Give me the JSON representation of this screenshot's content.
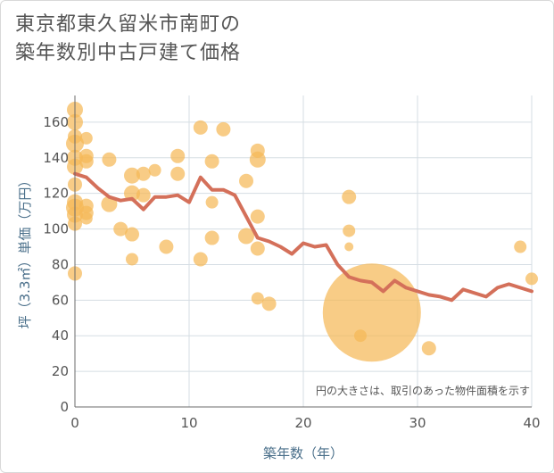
{
  "title": {
    "line1": "東京都東久留米市南町の",
    "line2": "築年数別中古戸建て価格"
  },
  "chart_data": {
    "type": "scatter",
    "title": "東京都東久留米市南町の築年数別中古戸建て価格",
    "xlabel": "築年数（年）",
    "ylabel": "坪（3.3㎡）単価（万円）",
    "xlim": [
      0,
      40
    ],
    "ylim": [
      0,
      175
    ],
    "xticks": [
      0,
      10,
      20,
      30,
      40
    ],
    "yticks": [
      0,
      20,
      40,
      60,
      80,
      100,
      120,
      140,
      160
    ],
    "grid": true,
    "annotation": "円の大きさは、取引のあった物件面積を示す",
    "colors": {
      "bubble": "#f5b957",
      "line": "#d4705a",
      "grid": "#d5dde3"
    },
    "bubbles": [
      {
        "x": 0,
        "y": 167,
        "s": 9
      },
      {
        "x": 0,
        "y": 160,
        "s": 9
      },
      {
        "x": 0,
        "y": 152,
        "s": 8
      },
      {
        "x": 0,
        "y": 148,
        "s": 10
      },
      {
        "x": 0,
        "y": 140,
        "s": 9
      },
      {
        "x": 0,
        "y": 135,
        "s": 9
      },
      {
        "x": 0,
        "y": 125,
        "s": 8
      },
      {
        "x": 0,
        "y": 115,
        "s": 9
      },
      {
        "x": 0,
        "y": 112,
        "s": 10
      },
      {
        "x": 0,
        "y": 108,
        "s": 9
      },
      {
        "x": 0,
        "y": 103,
        "s": 8
      },
      {
        "x": 0,
        "y": 75,
        "s": 8
      },
      {
        "x": 1,
        "y": 151,
        "s": 7
      },
      {
        "x": 1,
        "y": 141,
        "s": 8
      },
      {
        "x": 1,
        "y": 138,
        "s": 8
      },
      {
        "x": 1,
        "y": 113,
        "s": 8
      },
      {
        "x": 1,
        "y": 109,
        "s": 8
      },
      {
        "x": 1,
        "y": 106,
        "s": 7
      },
      {
        "x": 3,
        "y": 139,
        "s": 8
      },
      {
        "x": 3,
        "y": 114,
        "s": 9
      },
      {
        "x": 4,
        "y": 100,
        "s": 8
      },
      {
        "x": 5,
        "y": 130,
        "s": 9
      },
      {
        "x": 5,
        "y": 120,
        "s": 9
      },
      {
        "x": 5,
        "y": 97,
        "s": 8
      },
      {
        "x": 5,
        "y": 83,
        "s": 7
      },
      {
        "x": 6,
        "y": 131,
        "s": 8
      },
      {
        "x": 6,
        "y": 119,
        "s": 8
      },
      {
        "x": 7,
        "y": 133,
        "s": 7
      },
      {
        "x": 8,
        "y": 90,
        "s": 8
      },
      {
        "x": 9,
        "y": 141,
        "s": 8
      },
      {
        "x": 9,
        "y": 131,
        "s": 8
      },
      {
        "x": 11,
        "y": 157,
        "s": 8
      },
      {
        "x": 11,
        "y": 83,
        "s": 8
      },
      {
        "x": 12,
        "y": 138,
        "s": 8
      },
      {
        "x": 12,
        "y": 115,
        "s": 7
      },
      {
        "x": 12,
        "y": 95,
        "s": 8
      },
      {
        "x": 13,
        "y": 156,
        "s": 8
      },
      {
        "x": 15,
        "y": 127,
        "s": 8
      },
      {
        "x": 15,
        "y": 96,
        "s": 9
      },
      {
        "x": 16,
        "y": 144,
        "s": 8
      },
      {
        "x": 16,
        "y": 139,
        "s": 9
      },
      {
        "x": 16,
        "y": 107,
        "s": 8
      },
      {
        "x": 16,
        "y": 89,
        "s": 8
      },
      {
        "x": 16,
        "y": 61,
        "s": 7
      },
      {
        "x": 17,
        "y": 58,
        "s": 8
      },
      {
        "x": 24,
        "y": 118,
        "s": 8
      },
      {
        "x": 24,
        "y": 99,
        "s": 7
      },
      {
        "x": 24,
        "y": 90,
        "s": 5
      },
      {
        "x": 25,
        "y": 40,
        "s": 7
      },
      {
        "x": 26,
        "y": 53,
        "s": 55
      },
      {
        "x": 31,
        "y": 33,
        "s": 8
      },
      {
        "x": 39,
        "y": 90,
        "s": 7
      },
      {
        "x": 40,
        "y": 72,
        "s": 7
      }
    ],
    "line": {
      "x": [
        0,
        1,
        2,
        3,
        4,
        5,
        6,
        7,
        8,
        9,
        10,
        11,
        12,
        13,
        14,
        15,
        16,
        17,
        18,
        19,
        20,
        21,
        22,
        23,
        24,
        25,
        26,
        27,
        28,
        29,
        30,
        31,
        32,
        33,
        34,
        35,
        36,
        37,
        38,
        39,
        40
      ],
      "y": [
        131,
        129,
        123,
        118,
        116,
        117,
        111,
        118,
        118,
        119,
        115,
        129,
        122,
        122,
        119,
        107,
        95,
        93,
        90,
        86,
        92,
        90,
        91,
        80,
        73,
        71,
        70,
        65,
        71,
        67,
        65,
        63,
        62,
        60,
        66,
        64,
        62,
        67,
        69,
        67,
        65
      ]
    }
  }
}
